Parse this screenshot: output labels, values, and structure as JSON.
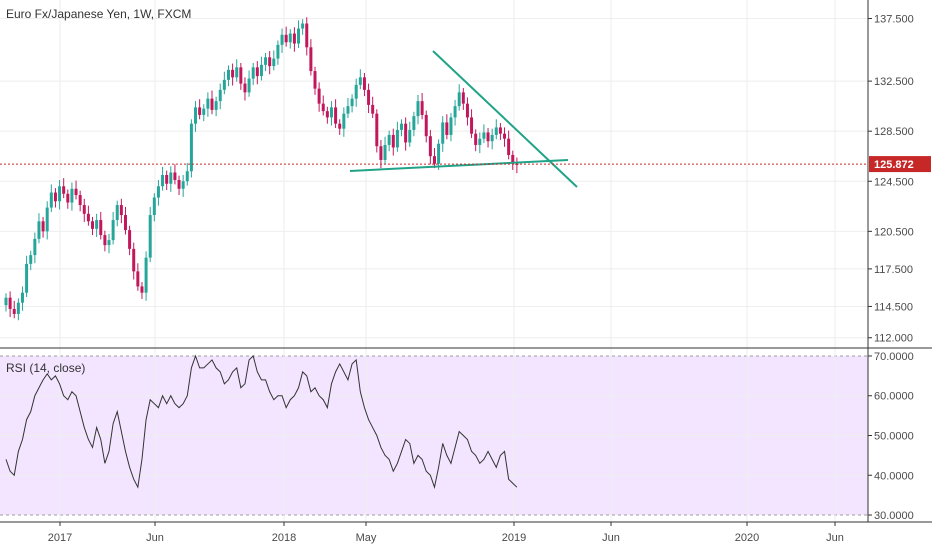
{
  "chart_data": [
    {
      "type": "candlestick",
      "title": "Euro Fx/Japanese Yen, 1W, FXCM",
      "y_ticks": [
        "137.500",
        "132.500",
        "128.500",
        "124.500",
        "120.500",
        "117.500",
        "114.500",
        "112.000"
      ],
      "x_ticks": [
        "2017",
        "Jun",
        "2018",
        "May",
        "2019",
        "Jun",
        "2020",
        "Jun"
      ],
      "ylim": [
        111.5,
        138.5
      ],
      "current_price": 125.872,
      "current_price_label": "125.872",
      "up_color": "#26a69a",
      "down_color": "#c2185b",
      "closes": [
        115.2,
        114.3,
        113.9,
        114.8,
        115.6,
        117.9,
        118.6,
        119.9,
        121.3,
        120.5,
        122.4,
        123.6,
        122.9,
        124.1,
        123.5,
        122.8,
        123.9,
        123.4,
        122.6,
        121.9,
        121.3,
        120.7,
        121.4,
        120.2,
        119.4,
        119.8,
        121.4,
        122.6,
        121.8,
        120.6,
        119.1,
        117.3,
        116.1,
        115.6,
        118.4,
        121.8,
        123.2,
        124.1,
        125.0,
        124.3,
        125.2,
        124.6,
        123.9,
        124.5,
        125.3,
        129.1,
        130.4,
        129.8,
        130.3,
        131.1,
        130.2,
        130.9,
        131.8,
        132.6,
        133.4,
        132.8,
        133.6,
        132.3,
        131.6,
        132.7,
        133.6,
        132.9,
        133.8,
        134.4,
        133.7,
        134.3,
        135.4,
        136.2,
        135.6,
        136.3,
        135.5,
        136.7,
        137.1,
        135.2,
        133.3,
        131.9,
        130.7,
        130.1,
        129.6,
        130.4,
        129.1,
        128.7,
        129.9,
        130.5,
        131.1,
        132.2,
        132.8,
        131.8,
        130.6,
        129.9,
        127.3,
        126.2,
        127.4,
        128.2,
        127.2,
        128.6,
        129.1,
        127.6,
        128.6,
        129.7,
        130.9,
        129.8,
        128.1,
        126.5,
        125.9,
        127.5,
        129.2,
        128.2,
        129.6,
        130.5,
        131.6,
        130.7,
        129.6,
        128.3,
        127.4,
        127.9,
        128.4,
        127.7,
        128.2,
        128.8,
        128.3,
        127.9,
        126.6,
        125.9,
        125.8
      ]
    },
    {
      "type": "line",
      "title": "RSI (14, close)",
      "y_ticks": [
        "70.0000",
        "60.0000",
        "50.0000",
        "40.0000",
        "30.0000"
      ],
      "ylim": [
        29,
        71
      ],
      "bands": [
        30,
        70
      ],
      "line_color": "#333333",
      "fill_color": "#f3e5ff",
      "values": [
        44,
        41,
        40,
        46,
        49,
        54,
        56,
        60,
        62,
        64,
        65.5,
        64,
        65,
        63,
        60,
        59,
        61,
        60,
        56,
        52,
        49,
        47,
        52,
        49,
        43,
        46,
        53,
        56,
        51,
        46,
        42,
        39,
        37,
        44,
        54,
        59,
        58,
        57,
        60,
        58,
        60,
        58,
        57,
        58,
        60,
        67,
        70,
        67,
        67,
        68,
        69,
        67,
        66,
        63,
        64,
        66,
        67,
        62,
        63,
        69,
        70,
        66,
        64,
        64,
        61,
        59,
        60,
        60,
        57,
        59,
        60,
        62,
        66,
        65,
        61,
        62,
        60,
        59,
        57,
        63,
        66,
        68,
        66,
        64,
        68,
        69,
        61,
        57,
        54,
        52,
        50,
        47,
        45,
        44,
        41,
        43,
        46,
        49,
        48,
        43,
        45,
        44,
        41,
        40,
        37,
        42,
        48,
        45,
        43,
        47,
        51,
        50,
        49,
        46,
        45,
        43,
        44,
        46,
        44,
        42,
        45,
        46,
        39,
        38,
        37
      ]
    }
  ]
}
